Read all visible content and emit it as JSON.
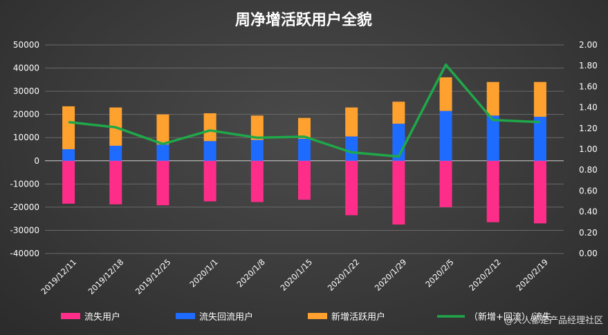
{
  "chart_data": {
    "type": "bar",
    "title": "周净增活跃用户全貌",
    "categories": [
      "2019/12/11",
      "2019/12/18",
      "2019/12/25",
      "2020/1/1",
      "2020/1/8",
      "2020/1/15",
      "2020/1/22",
      "2020/1/29",
      "2020/2/5",
      "2020/2/12",
      "2020/2/19"
    ],
    "y_left": {
      "min": -40000,
      "max": 50000,
      "step": 10000
    },
    "y_right": {
      "min": 0,
      "max": 2.0,
      "step": 0.2
    },
    "grid": true,
    "legend_position": "bottom",
    "series": [
      {
        "name": "流失用户",
        "kind": "bar",
        "axis": "left",
        "color": "#ff2d8a",
        "values": [
          -18500,
          -18800,
          -19200,
          -17500,
          -17800,
          -16800,
          -23500,
          -27500,
          -20000,
          -26500,
          -27000
        ]
      },
      {
        "name": "流失回流用户",
        "kind": "bar",
        "axis": "left",
        "color": "#1e6bff",
        "values": [
          5000,
          6500,
          7000,
          8500,
          9000,
          9500,
          10500,
          16000,
          21500,
          19500,
          19000
        ]
      },
      {
        "name": "新增活跃用户",
        "kind": "bar",
        "axis": "left",
        "color": "#ffa12e",
        "values": [
          18500,
          16500,
          13000,
          12000,
          10500,
          9000,
          12500,
          9500,
          14500,
          14500,
          15000
        ]
      },
      {
        "name": "（新增+回流）/流失",
        "kind": "line",
        "axis": "right",
        "color": "#1fa84a",
        "values": [
          1.26,
          1.21,
          1.05,
          1.18,
          1.11,
          1.12,
          0.97,
          0.93,
          1.81,
          1.28,
          1.26
        ]
      }
    ]
  },
  "watermark": "@人人都是产品经理社区"
}
